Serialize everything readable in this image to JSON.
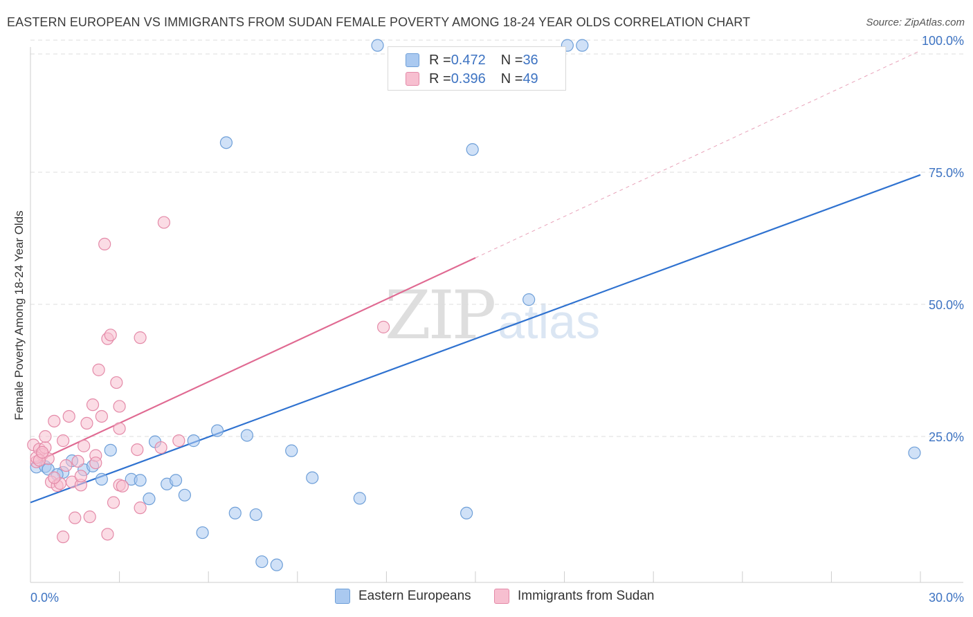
{
  "title": "EASTERN EUROPEAN VS IMMIGRANTS FROM SUDAN FEMALE POVERTY AMONG 18-24 YEAR OLDS CORRELATION CHART",
  "source": "Source: ZipAtlas.com",
  "watermark": {
    "zip": "ZIP",
    "atlas": "atlas"
  },
  "legend_top": {
    "rows": [
      {
        "r_label": "R = ",
        "r_value": "0.472",
        "n_label": "N = ",
        "n_value": "36",
        "color": "#aac9f0",
        "border": "#6e9fd8"
      },
      {
        "r_label": "R = ",
        "r_value": "0.396",
        "n_label": "N = ",
        "n_value": "49",
        "color": "#f7bfd0",
        "border": "#e48aa8"
      }
    ]
  },
  "chart_data": {
    "type": "scatter",
    "title": "EASTERN EUROPEAN VS IMMIGRANTS FROM SUDAN FEMALE POVERTY AMONG 18-24 YEAR OLDS CORRELATION CHART",
    "xlabel": "",
    "ylabel": "Female Poverty Among 18-24 Year Olds",
    "xlim": [
      0,
      30
    ],
    "ylim": [
      0,
      100
    ],
    "x_tick_labels": [
      "0.0%",
      "30.0%"
    ],
    "y_tick_labels": [
      "25.0%",
      "50.0%",
      "75.0%",
      "100.0%"
    ],
    "y_ticks": [
      25,
      50,
      75,
      100
    ],
    "grid": true,
    "series": [
      {
        "name": "Eastern Europeans",
        "color": "#aac9f0",
        "stroke": "#6e9fd8",
        "line_color": "#2f72d0",
        "regression": {
          "x": [
            0,
            30
          ],
          "y": [
            12.5,
            74.5
          ],
          "dashed_extension": false
        },
        "points": [
          [
            0.2,
            19.2
          ],
          [
            0.5,
            19.3
          ],
          [
            0.6,
            18.8
          ],
          [
            1.1,
            18.2
          ],
          [
            1.4,
            20.4
          ],
          [
            1.8,
            18.7
          ],
          [
            2.1,
            19.4
          ],
          [
            2.4,
            16.9
          ],
          [
            2.7,
            22.4
          ],
          [
            3.4,
            16.9
          ],
          [
            3.7,
            16.7
          ],
          [
            4.0,
            13.2
          ],
          [
            4.2,
            24.0
          ],
          [
            4.6,
            16.0
          ],
          [
            4.9,
            16.7
          ],
          [
            5.2,
            13.9
          ],
          [
            5.5,
            24.2
          ],
          [
            5.8,
            6.8
          ],
          [
            6.3,
            26.1
          ],
          [
            6.6,
            80.6
          ],
          [
            6.9,
            10.5
          ],
          [
            7.3,
            25.2
          ],
          [
            7.6,
            10.2
          ],
          [
            7.8,
            1.3
          ],
          [
            8.3,
            0.7
          ],
          [
            8.8,
            22.3
          ],
          [
            9.5,
            17.2
          ],
          [
            11.1,
            13.3
          ],
          [
            11.7,
            99.0
          ],
          [
            14.7,
            10.5
          ],
          [
            14.9,
            79.3
          ],
          [
            16.8,
            50.9
          ],
          [
            18.1,
            99.0
          ],
          [
            18.6,
            99.0
          ],
          [
            29.8,
            21.9
          ],
          [
            0.9,
            17.8
          ]
        ]
      },
      {
        "name": "Immigrants from Sudan",
        "color": "#f7bfd0",
        "stroke": "#e48aa8",
        "line_color": "#e06a92",
        "regression": {
          "x": [
            0,
            15
          ],
          "y": [
            19.7,
            58.8
          ],
          "dashed_extension": true,
          "dashed_to": [
            30,
            98.0
          ]
        },
        "points": [
          [
            0.1,
            23.4
          ],
          [
            0.2,
            20.2
          ],
          [
            0.3,
            22.6
          ],
          [
            0.4,
            21.6
          ],
          [
            0.5,
            22.9
          ],
          [
            0.6,
            20.8
          ],
          [
            0.7,
            16.4
          ],
          [
            0.8,
            27.9
          ],
          [
            0.9,
            15.7
          ],
          [
            1.0,
            16.1
          ],
          [
            1.1,
            24.2
          ],
          [
            1.2,
            19.5
          ],
          [
            1.3,
            28.8
          ],
          [
            1.4,
            16.4
          ],
          [
            1.5,
            9.6
          ],
          [
            1.6,
            20.3
          ],
          [
            1.7,
            15.8
          ],
          [
            1.8,
            23.2
          ],
          [
            1.9,
            27.5
          ],
          [
            2.0,
            9.8
          ],
          [
            2.1,
            31.0
          ],
          [
            2.2,
            21.4
          ],
          [
            2.3,
            37.6
          ],
          [
            2.4,
            28.8
          ],
          [
            2.5,
            61.4
          ],
          [
            2.6,
            43.5
          ],
          [
            2.7,
            44.2
          ],
          [
            2.8,
            12.5
          ],
          [
            2.9,
            35.2
          ],
          [
            3.0,
            30.7
          ],
          [
            3.0,
            15.8
          ],
          [
            3.1,
            15.6
          ],
          [
            3.0,
            26.5
          ],
          [
            1.1,
            6.0
          ],
          [
            2.6,
            6.5
          ],
          [
            3.7,
            11.5
          ],
          [
            3.6,
            22.5
          ],
          [
            3.7,
            43.7
          ],
          [
            4.4,
            22.9
          ],
          [
            4.5,
            65.5
          ],
          [
            5.0,
            24.2
          ],
          [
            11.9,
            45.7
          ],
          [
            0.2,
            21.0
          ],
          [
            0.3,
            20.5
          ],
          [
            0.8,
            17.2
          ],
          [
            1.7,
            17.5
          ],
          [
            0.5,
            25.0
          ],
          [
            0.4,
            22.0
          ],
          [
            2.2,
            20.0
          ]
        ]
      }
    ]
  },
  "legend_bottom": [
    {
      "label": "Eastern Europeans",
      "color": "#aac9f0",
      "border": "#6e9fd8"
    },
    {
      "label": "Immigrants from Sudan",
      "color": "#f7bfd0",
      "border": "#e48aa8"
    }
  ]
}
